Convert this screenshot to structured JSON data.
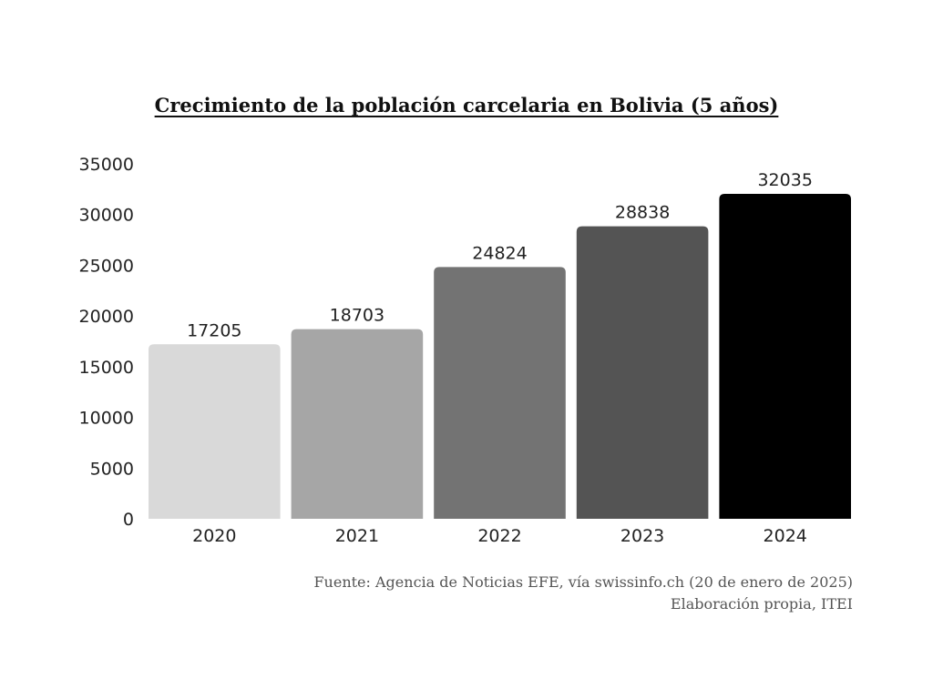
{
  "chart_data": {
    "type": "bar",
    "title": "Crecimiento de la población carcelaria en Bolivia (5 años)",
    "categories": [
      "2020",
      "2021",
      "2022",
      "2023",
      "2024"
    ],
    "values": [
      17205,
      18703,
      24824,
      28838,
      32035
    ],
    "colors": [
      "#d9d9d9",
      "#a6a6a6",
      "#737373",
      "#545454",
      "#000000"
    ],
    "ylim": [
      0,
      35000
    ],
    "yticks": [
      0,
      5000,
      10000,
      15000,
      20000,
      25000,
      30000,
      35000
    ],
    "grid": false,
    "legend": "none",
    "data_labels": true
  },
  "source": {
    "line1": "Fuente: Agencia de Noticias EFE, vía swissinfo.ch (20 de enero de 2025)",
    "line2": "Elaboración propia, ITEI"
  }
}
